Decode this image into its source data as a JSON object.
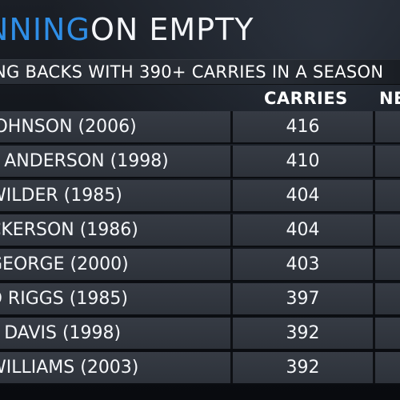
{
  "header": {
    "title_accent": "NNING",
    "title_main": "ON EMPTY",
    "subtitle": "NG BACKS WITH 390+ CARRIES IN A SEASON"
  },
  "columns": {
    "carries": "CARRIES",
    "next": "NE"
  },
  "rows": [
    {
      "name": "JOHNSON (2006)",
      "carries": "416"
    },
    {
      "name": "L ANDERSON (1998)",
      "carries": "410"
    },
    {
      "name": "WILDER (1985)",
      "carries": "404"
    },
    {
      "name": "CKERSON (1986)",
      "carries": "404"
    },
    {
      "name": "GEORGE (2000)",
      "carries": "403"
    },
    {
      "name": "D RIGGS (1985)",
      "carries": "397"
    },
    {
      "name": "L DAVIS (1998)",
      "carries": "392"
    },
    {
      "name": "WILLIAMS (2003)",
      "carries": "392"
    }
  ]
}
